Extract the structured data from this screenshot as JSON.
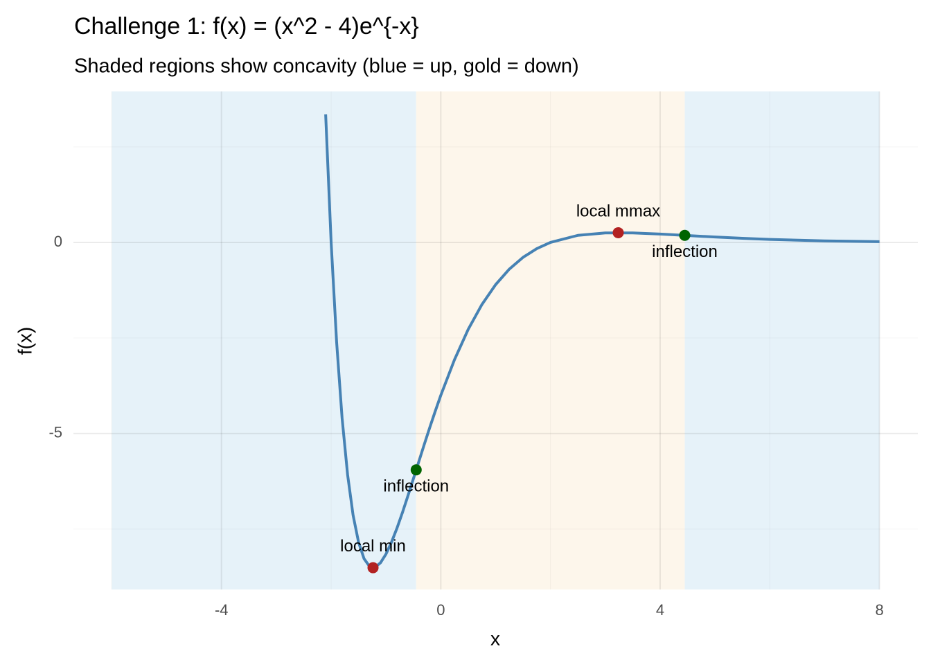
{
  "chart_data": {
    "type": "line",
    "title": "Challenge 1:  f(x) = (x^2 - 4)e^{-x}",
    "subtitle": "Shaded regions show concavity (blue = up, gold = down)",
    "x_label": "x",
    "y_label": "f(x)",
    "xlim": [
      -6.7,
      8.7
    ],
    "ylim": [
      -9.08,
      3.95
    ],
    "xticks": [
      -4,
      0,
      4,
      8
    ],
    "yticks": [
      -5,
      0
    ],
    "grid": true,
    "regions": [
      {
        "x0": -6,
        "x1": -0.449,
        "color": "#e6f2f9"
      },
      {
        "x0": -0.449,
        "x1": 4.449,
        "color": "#fdf6eb"
      },
      {
        "x0": 4.449,
        "x1": 8,
        "color": "#e6f2f9"
      }
    ],
    "series": [
      {
        "color": "#4682b4",
        "x": [
          -2.1,
          -2.0,
          -1.9,
          -1.8,
          -1.7,
          -1.6,
          -1.5,
          -1.4,
          -1.3,
          -1.2,
          -1.1,
          -1.0,
          -0.9,
          -0.8,
          -0.7,
          -0.6,
          -0.5,
          -0.4,
          -0.3,
          -0.2,
          -0.1,
          0,
          0.25,
          0.5,
          0.75,
          1,
          1.25,
          1.5,
          1.75,
          2,
          2.5,
          3,
          3.5,
          4,
          4.5,
          5,
          5.5,
          6,
          7,
          8
        ],
        "values": [
          3.348,
          0,
          -2.608,
          -4.598,
          -6.076,
          -7.132,
          -7.843,
          -8.273,
          -8.476,
          -8.499,
          -8.382,
          -8.155,
          -7.846,
          -7.478,
          -7.068,
          -6.632,
          -6.183,
          -5.729,
          -5.278,
          -4.837,
          -4.41,
          -4,
          -3.067,
          -2.274,
          -1.624,
          -1.104,
          -0.698,
          -0.39,
          -0.163,
          0,
          0.185,
          0.249,
          0.249,
          0.22,
          0.181,
          0.141,
          0.107,
          0.079,
          0.041,
          0.02
        ]
      }
    ],
    "points": [
      {
        "label": "local min",
        "x": -1.236,
        "y": -8.51,
        "color": "#b22222",
        "label_position": "above"
      },
      {
        "label": "inflection",
        "x": -0.449,
        "y": -5.95,
        "color": "#006400",
        "label_position": "below"
      },
      {
        "label": "local mmax",
        "x": 3.236,
        "y": 0.254,
        "color": "#b22222",
        "label_position": "above"
      },
      {
        "label": "inflection",
        "x": 4.449,
        "y": 0.185,
        "color": "#006400",
        "label_position": "below"
      }
    ]
  }
}
